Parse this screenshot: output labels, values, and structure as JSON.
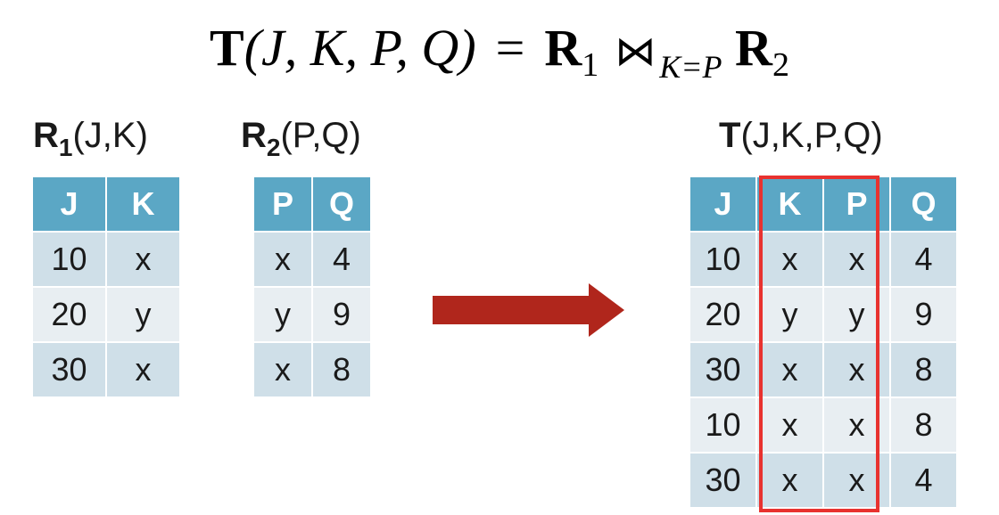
{
  "formula": {
    "lhs_rel": "T",
    "lhs_args": "(J, K, P, Q)",
    "equals": "=",
    "rel1": "R",
    "rel1_sub": "1",
    "join_symbol": "⋈",
    "join_condition": "K=P",
    "rel2": "R",
    "rel2_sub": "2"
  },
  "r1": {
    "name": "R",
    "sub": "1",
    "attrs": "(J,K)",
    "columns": [
      "J",
      "K"
    ],
    "rows": [
      [
        "10",
        "x"
      ],
      [
        "20",
        "y"
      ],
      [
        "30",
        "x"
      ]
    ]
  },
  "r2": {
    "name": "R",
    "sub": "2",
    "attrs": "(P,Q)",
    "columns": [
      "P",
      "Q"
    ],
    "rows": [
      [
        "x",
        "4"
      ],
      [
        "y",
        "9"
      ],
      [
        "x",
        "8"
      ]
    ]
  },
  "t": {
    "name": "T",
    "attrs": "(J,K,P,Q)",
    "columns": [
      "J",
      "K",
      "P",
      "Q"
    ],
    "rows": [
      [
        "10",
        "x",
        "x",
        "4"
      ],
      [
        "20",
        "y",
        "y",
        "9"
      ],
      [
        "30",
        "x",
        "x",
        "8"
      ],
      [
        "10",
        "x",
        "x",
        "8"
      ],
      [
        "30",
        "x",
        "x",
        "4"
      ]
    ],
    "highlighted_columns": [
      "K",
      "P"
    ]
  },
  "colors": {
    "header_bg": "#5ba7c5",
    "row_dark": "#cfdfe8",
    "row_light": "#e8eef2",
    "arrow": "#b0261c",
    "highlight_border": "#e8322f"
  }
}
